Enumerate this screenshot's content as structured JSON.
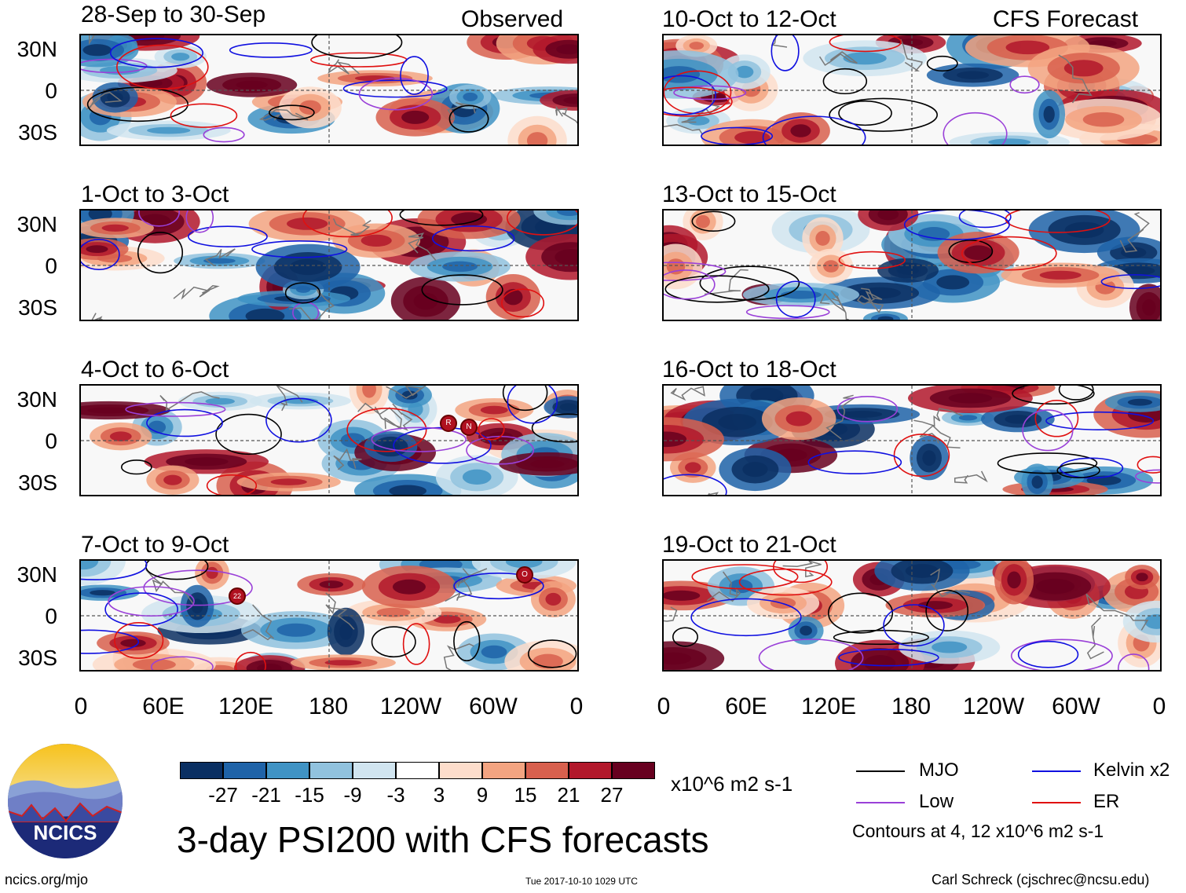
{
  "left_header": "Observed",
  "right_header": "CFS Forecast",
  "panels_left": [
    {
      "title": "28-Sep to 30-Sep"
    },
    {
      "title": "1-Oct to 3-Oct"
    },
    {
      "title": "4-Oct to 6-Oct"
    },
    {
      "title": "7-Oct to 9-Oct"
    }
  ],
  "panels_right": [
    {
      "title": "10-Oct to 12-Oct"
    },
    {
      "title": "13-Oct to 15-Oct"
    },
    {
      "title": "16-Oct to 18-Oct"
    },
    {
      "title": "19-Oct to 21-Oct"
    }
  ],
  "y_ticks": [
    "30N",
    "0",
    "30S"
  ],
  "x_ticks": [
    "0",
    "60E",
    "120E",
    "180",
    "120W",
    "60W",
    "0"
  ],
  "storm_markers": [
    "R",
    "N",
    "22",
    "O"
  ],
  "colorbar": {
    "colors": [
      "#0a2f62",
      "#1f63a8",
      "#4093c4",
      "#91c2de",
      "#d1e5f0",
      "#ffffff",
      "#fdddcb",
      "#f3a481",
      "#d8604e",
      "#b2182b",
      "#67001f"
    ],
    "labels": [
      "-27",
      "-21",
      "-15",
      "-9",
      "-3",
      "3",
      "9",
      "15",
      "21",
      "27"
    ],
    "units": "x10^6 m2 s-1"
  },
  "legend": {
    "items": [
      {
        "label": "MJO",
        "color": "#000000"
      },
      {
        "label": "Kelvin x2",
        "color": "#1010e0"
      },
      {
        "label": "Low",
        "color": "#9a40d8"
      },
      {
        "label": "ER",
        "color": "#e01010"
      }
    ],
    "contours": "Contours at 4, 12 x10^6 m2 s-1"
  },
  "logo_text": "NCICS",
  "main_title": "3-day PSI200 with CFS forecasts",
  "footer": {
    "left": "ncics.org/mjo",
    "center": "Tue 2017-10-10 1029 UTC",
    "right": "Carl Schreck (cjschrec@ncsu.edu)"
  }
}
